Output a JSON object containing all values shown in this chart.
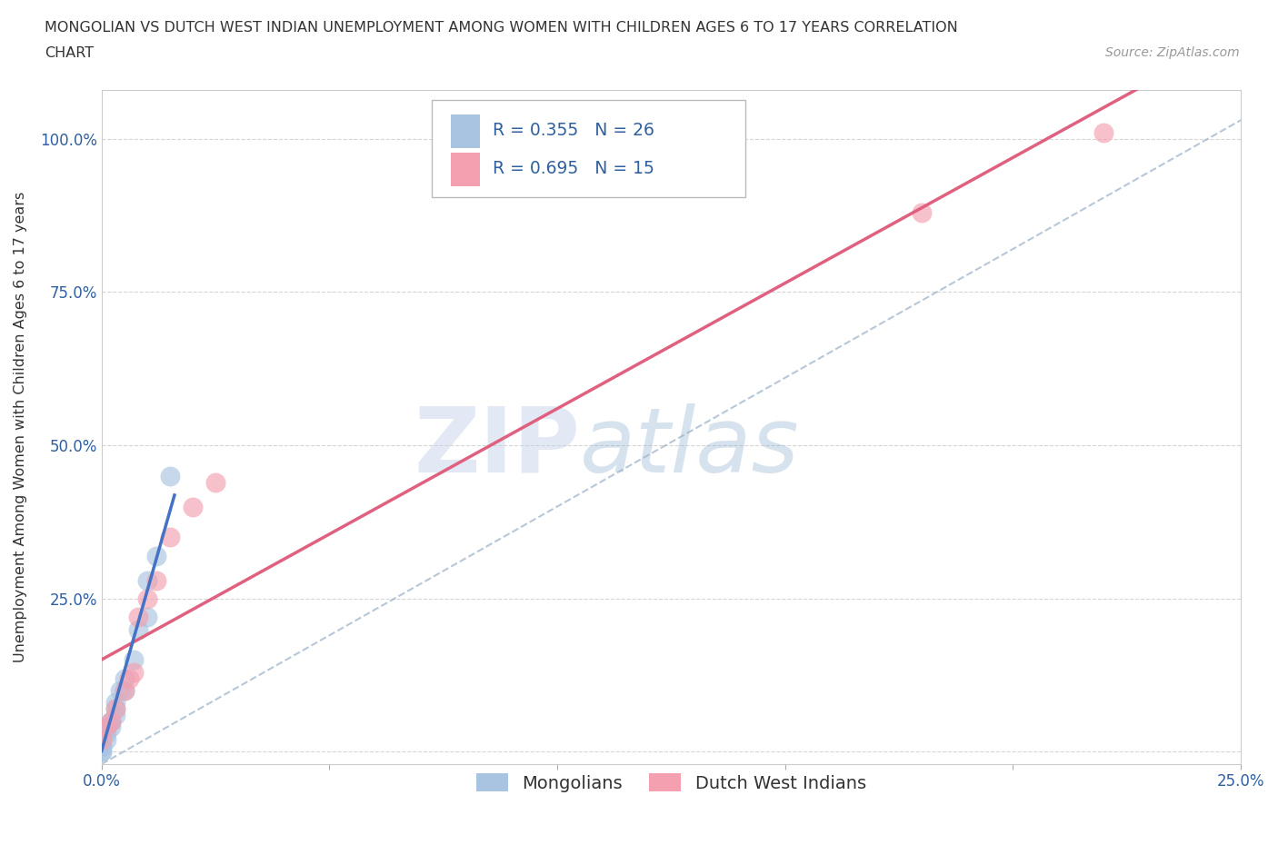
{
  "title_line1": "MONGOLIAN VS DUTCH WEST INDIAN UNEMPLOYMENT AMONG WOMEN WITH CHILDREN AGES 6 TO 17 YEARS CORRELATION",
  "title_line2": "CHART",
  "source": "Source: ZipAtlas.com",
  "ylabel": "Unemployment Among Women with Children Ages 6 to 17 years",
  "xlim": [
    0.0,
    0.25
  ],
  "ylim": [
    -0.02,
    1.08
  ],
  "mongolian_x": [
    0.0,
    0.0,
    0.0,
    0.0,
    0.0,
    0.0,
    0.0,
    0.0,
    0.001,
    0.001,
    0.001,
    0.002,
    0.002,
    0.002,
    0.003,
    0.003,
    0.003,
    0.004,
    0.005,
    0.005,
    0.007,
    0.008,
    0.01,
    0.01,
    0.012,
    0.015
  ],
  "mongolian_y": [
    0.0,
    0.0,
    0.01,
    0.01,
    0.02,
    0.02,
    0.02,
    0.03,
    0.02,
    0.03,
    0.04,
    0.04,
    0.05,
    0.05,
    0.06,
    0.07,
    0.08,
    0.1,
    0.1,
    0.12,
    0.15,
    0.2,
    0.22,
    0.28,
    0.32,
    0.45
  ],
  "dutch_x": [
    0.0,
    0.001,
    0.002,
    0.003,
    0.005,
    0.006,
    0.007,
    0.008,
    0.01,
    0.012,
    0.015,
    0.02,
    0.025,
    0.18,
    0.22
  ],
  "dutch_y": [
    0.02,
    0.04,
    0.05,
    0.07,
    0.1,
    0.12,
    0.13,
    0.22,
    0.25,
    0.28,
    0.35,
    0.4,
    0.44,
    0.88,
    1.01
  ],
  "mongolian_color": "#a8c4e0",
  "dutch_color": "#f4a0b0",
  "mongolian_line_color": "#4472c4",
  "dutch_line_color": "#e06080",
  "dashed_line_color": "#9ab0c8",
  "R_mongolian": 0.355,
  "N_mongolian": 26,
  "R_dutch": 0.695,
  "N_dutch": 15,
  "legend_mongolians": "Mongolians",
  "legend_dutch": "Dutch West Indians",
  "watermark_zip": "ZIP",
  "watermark_atlas": "atlas",
  "background_color": "#ffffff",
  "grid_color": "#cccccc"
}
